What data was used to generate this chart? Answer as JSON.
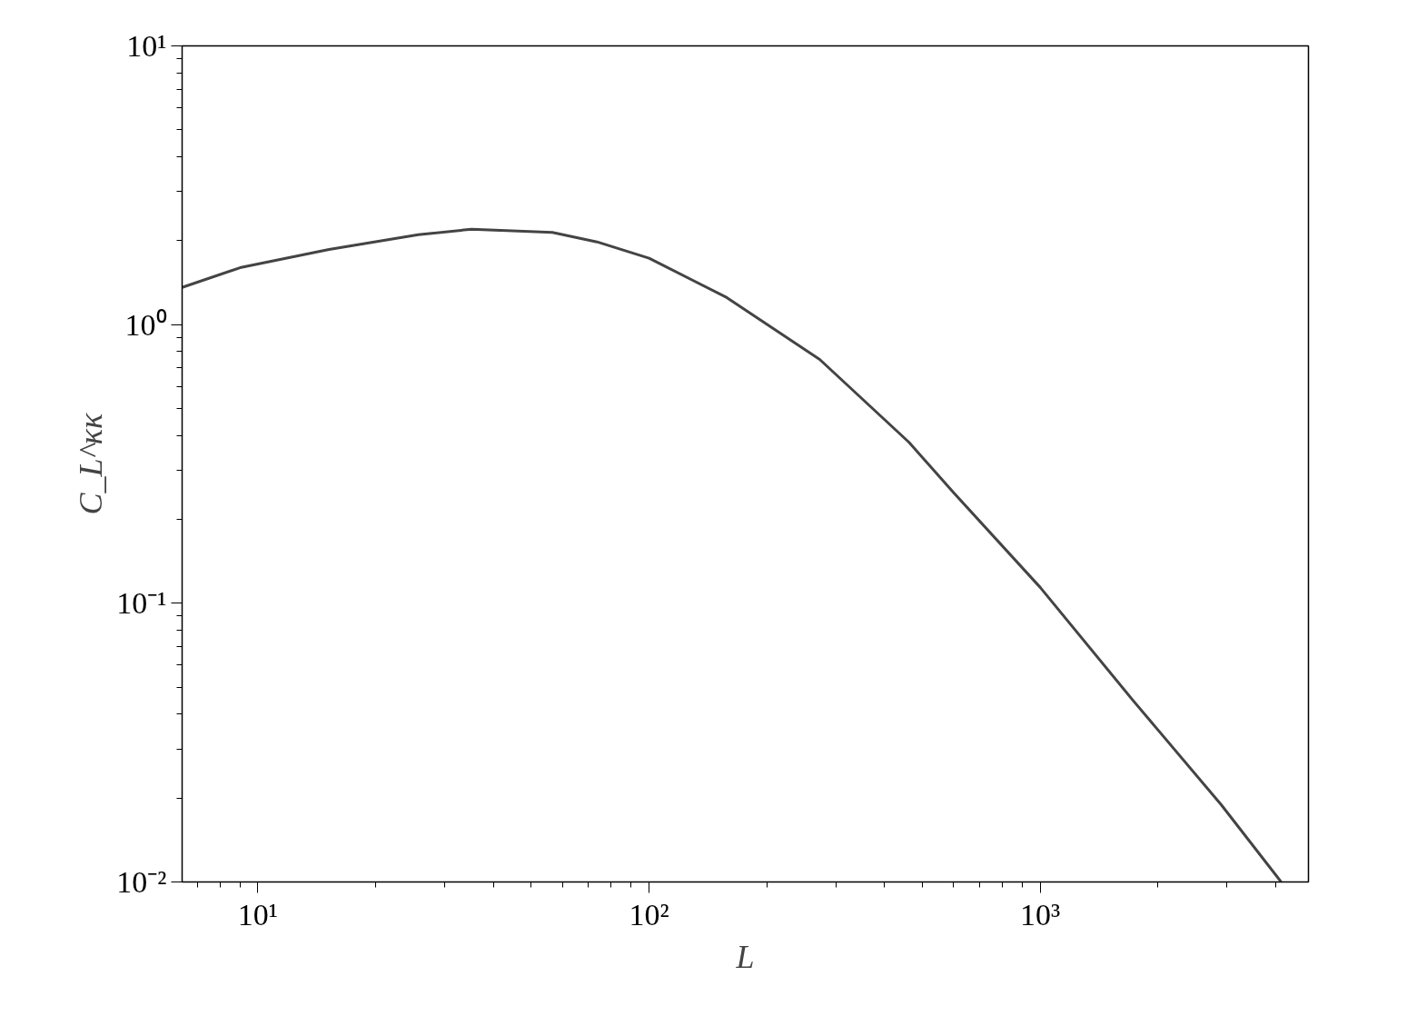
{
  "chart_data": {
    "type": "line",
    "xlabel": "L",
    "ylabel": "C_L^κκ",
    "log": "xy",
    "grid": false,
    "xlim": [
      6.4,
      4850
    ],
    "ylim": [
      0.01,
      10
    ],
    "xticks": [
      {
        "value": 10,
        "label": "10¹"
      },
      {
        "value": 100,
        "label": "10²"
      },
      {
        "value": 1000,
        "label": "10³"
      }
    ],
    "yticks": [
      {
        "value": 0.01,
        "label": "10⁻²"
      },
      {
        "value": 0.1,
        "label": "10⁻¹"
      },
      {
        "value": 1,
        "label": "10⁰"
      },
      {
        "value": 10,
        "label": "10¹"
      }
    ],
    "series": [
      {
        "color": "#444444",
        "x": [
          6.4,
          9.0,
          15.2,
          25.7,
          35.2,
          56.6,
          73.6,
          100,
          158,
          273,
          462,
          601,
          1000,
          1718,
          2905,
          4130
        ],
        "values": [
          1.36,
          1.6,
          1.86,
          2.1,
          2.2,
          2.14,
          1.98,
          1.73,
          1.25,
          0.75,
          0.378,
          0.249,
          0.114,
          0.0452,
          0.0189,
          0.01
        ]
      }
    ]
  }
}
